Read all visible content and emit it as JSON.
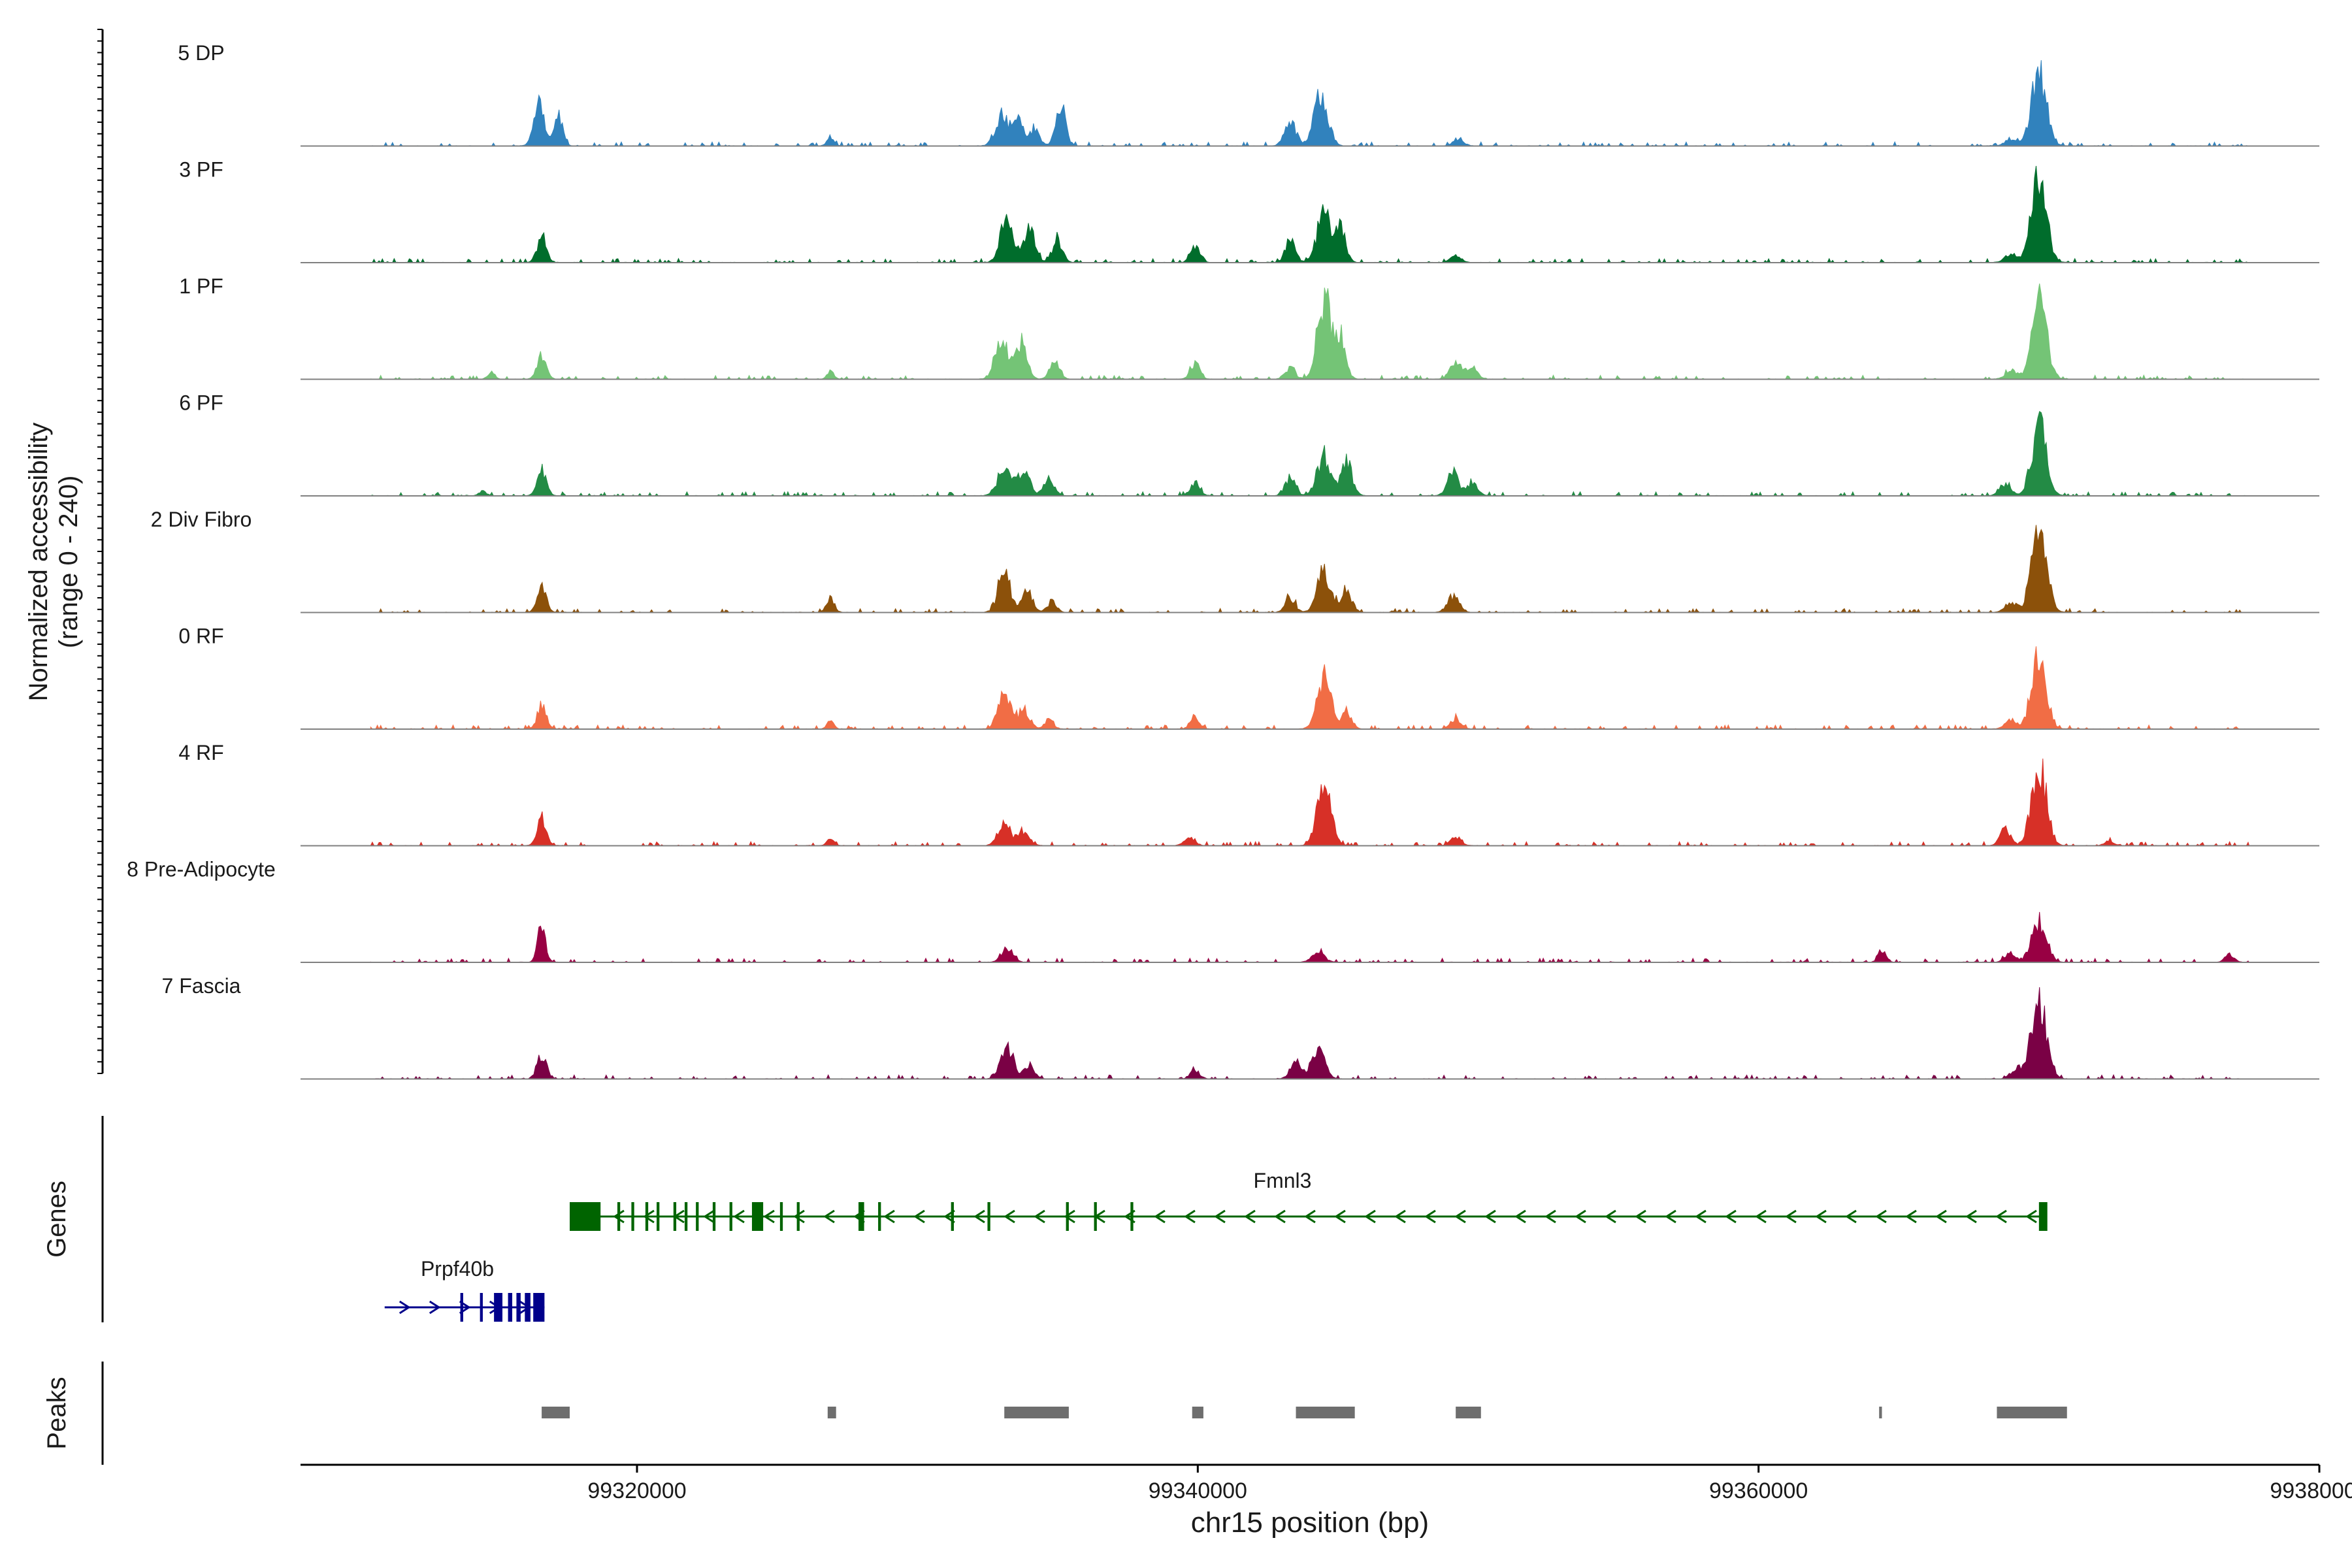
{
  "chart_data": {
    "type": "area",
    "title": "",
    "xlabel": "chr15 position (bp)",
    "ylabel_line1": "Normalized accessibility",
    "ylabel_line2": "(range 0 - 240)",
    "xlim": [
      99308000,
      99380000
    ],
    "ylim": [
      0,
      240
    ],
    "x_ticks": [
      99320000,
      99340000,
      99360000,
      99380000
    ],
    "x_tick_labels": [
      "99320000",
      "99340000",
      "99360000",
      "99380000"
    ],
    "background_noise_fraction": 0.03,
    "tracks": [
      {
        "name": "5 DP",
        "color": "#3182bd",
        "peaks": [
          [
            99316500,
            0.45,
            180
          ],
          [
            99317200,
            0.32,
            150
          ],
          [
            99326900,
            0.1,
            120
          ],
          [
            99333000,
            0.35,
            220
          ],
          [
            99333600,
            0.3,
            200
          ],
          [
            99334200,
            0.18,
            160
          ],
          [
            99335100,
            0.45,
            180
          ],
          [
            99343300,
            0.28,
            200
          ],
          [
            99344400,
            0.6,
            240
          ],
          [
            99349300,
            0.08,
            180
          ],
          [
            99370000,
            0.85,
            260
          ],
          [
            99369000,
            0.08,
            200
          ]
        ]
      },
      {
        "name": "3 PF",
        "color": "#006d2c",
        "peaks": [
          [
            99316600,
            0.28,
            160
          ],
          [
            99333200,
            0.55,
            220
          ],
          [
            99334000,
            0.35,
            200
          ],
          [
            99335000,
            0.25,
            180
          ],
          [
            99339900,
            0.18,
            160
          ],
          [
            99343300,
            0.25,
            180
          ],
          [
            99344500,
            0.55,
            240
          ],
          [
            99345100,
            0.35,
            180
          ],
          [
            99349200,
            0.08,
            180
          ],
          [
            99370000,
            0.95,
            260
          ],
          [
            99369000,
            0.1,
            200
          ]
        ]
      },
      {
        "name": "1 PF",
        "color": "#74c476",
        "peaks": [
          [
            99316600,
            0.28,
            160
          ],
          [
            99314800,
            0.08,
            120
          ],
          [
            99326900,
            0.08,
            120
          ],
          [
            99333000,
            0.48,
            220
          ],
          [
            99333700,
            0.4,
            200
          ],
          [
            99334900,
            0.18,
            180
          ],
          [
            99339900,
            0.18,
            160
          ],
          [
            99343300,
            0.12,
            180
          ],
          [
            99344500,
            0.9,
            240
          ],
          [
            99345100,
            0.45,
            180
          ],
          [
            99349200,
            0.2,
            200
          ],
          [
            99349800,
            0.12,
            180
          ],
          [
            99370000,
            0.9,
            260
          ],
          [
            99369000,
            0.1,
            200
          ]
        ]
      },
      {
        "name": "6 PF",
        "color": "#238b45",
        "peaks": [
          [
            99316600,
            0.3,
            160
          ],
          [
            99314500,
            0.06,
            120
          ],
          [
            99333100,
            0.3,
            240
          ],
          [
            99333800,
            0.25,
            220
          ],
          [
            99334700,
            0.18,
            180
          ],
          [
            99339900,
            0.12,
            180
          ],
          [
            99343300,
            0.2,
            180
          ],
          [
            99344500,
            0.45,
            240
          ],
          [
            99345300,
            0.38,
            200
          ],
          [
            99349100,
            0.25,
            200
          ],
          [
            99349800,
            0.15,
            180
          ],
          [
            99370000,
            0.78,
            260
          ],
          [
            99368800,
            0.12,
            200
          ]
        ]
      },
      {
        "name": "2 Div Fibro",
        "color": "#8c510a",
        "peaks": [
          [
            99316600,
            0.28,
            160
          ],
          [
            99326900,
            0.15,
            140
          ],
          [
            99333100,
            0.42,
            220
          ],
          [
            99333900,
            0.25,
            200
          ],
          [
            99334800,
            0.12,
            160
          ],
          [
            99343300,
            0.15,
            180
          ],
          [
            99344500,
            0.45,
            240
          ],
          [
            99345300,
            0.25,
            180
          ],
          [
            99349100,
            0.18,
            200
          ],
          [
            99370000,
            1.0,
            260
          ],
          [
            99369000,
            0.12,
            200
          ]
        ]
      },
      {
        "name": "0 RF",
        "color": "#f16d45",
        "peaks": [
          [
            99316600,
            0.25,
            160
          ],
          [
            99326900,
            0.08,
            120
          ],
          [
            99333100,
            0.38,
            220
          ],
          [
            99333800,
            0.22,
            200
          ],
          [
            99334700,
            0.1,
            160
          ],
          [
            99339900,
            0.15,
            160
          ],
          [
            99344500,
            0.6,
            240
          ],
          [
            99345300,
            0.2,
            180
          ],
          [
            99349200,
            0.12,
            180
          ],
          [
            99370000,
            0.85,
            260
          ],
          [
            99369000,
            0.1,
            200
          ]
        ]
      },
      {
        "name": "4 RF",
        "color": "#d73027",
        "peaks": [
          [
            99316600,
            0.32,
            160
          ],
          [
            99326900,
            0.08,
            120
          ],
          [
            99333100,
            0.25,
            220
          ],
          [
            99333800,
            0.15,
            200
          ],
          [
            99339700,
            0.1,
            180
          ],
          [
            99344500,
            0.72,
            240
          ],
          [
            99349200,
            0.1,
            180
          ],
          [
            99368800,
            0.18,
            180
          ],
          [
            99370000,
            0.92,
            260
          ],
          [
            99372500,
            0.06,
            150
          ]
        ]
      },
      {
        "name": "8 Pre-Adipocyte",
        "color": "#980043",
        "peaks": [
          [
            99316600,
            0.42,
            140
          ],
          [
            99333200,
            0.15,
            200
          ],
          [
            99344300,
            0.1,
            220
          ],
          [
            99364400,
            0.12,
            140
          ],
          [
            99370000,
            0.45,
            260
          ],
          [
            99369000,
            0.1,
            200
          ],
          [
            99376800,
            0.08,
            160
          ]
        ]
      },
      {
        "name": "7 Fascia",
        "color": "#7a0145",
        "peaks": [
          [
            99316600,
            0.28,
            160
          ],
          [
            99333200,
            0.35,
            220
          ],
          [
            99334000,
            0.15,
            180
          ],
          [
            99339900,
            0.1,
            160
          ],
          [
            99343500,
            0.18,
            200
          ],
          [
            99344300,
            0.38,
            220
          ],
          [
            99370000,
            0.92,
            260
          ],
          [
            99369200,
            0.12,
            200
          ]
        ]
      }
    ],
    "genes": [
      {
        "name": "Fmnl3",
        "color": "#006400",
        "strand": "-",
        "start": 99317600,
        "end": 99370200,
        "exons": [
          [
            99317600,
            99318700
          ],
          [
            99319300,
            99319400
          ],
          [
            99319800,
            99319900
          ],
          [
            99320300,
            99320400
          ],
          [
            99320700,
            99320800
          ],
          [
            99321300,
            99321400
          ],
          [
            99321700,
            99321800
          ],
          [
            99322100,
            99322200
          ],
          [
            99322700,
            99322800
          ],
          [
            99323300,
            99323400
          ],
          [
            99324100,
            99324500
          ],
          [
            99325100,
            99325200
          ],
          [
            99325700,
            99325800
          ],
          [
            99327900,
            99328100
          ],
          [
            99328600,
            99328700
          ],
          [
            99331200,
            99331300
          ],
          [
            99332500,
            99332600
          ],
          [
            99335300,
            99335400
          ],
          [
            99336300,
            99336400
          ],
          [
            99337600,
            99337700
          ],
          [
            99370000,
            99370300
          ]
        ]
      },
      {
        "name": "Prpf40b",
        "color": "#00008b",
        "strand": "+",
        "start": 99311000,
        "end": 99316700,
        "exons": [
          [
            99313700,
            99313800
          ],
          [
            99314400,
            99314500
          ],
          [
            99314900,
            99315200
          ],
          [
            99315400,
            99315550
          ],
          [
            99315700,
            99315850
          ],
          [
            99316000,
            99316200
          ],
          [
            99316300,
            99316700
          ]
        ]
      }
    ],
    "peaks": [
      [
        99316600,
        99317600
      ],
      [
        99326800,
        99327100
      ],
      [
        99333100,
        99335400
      ],
      [
        99339800,
        99340200
      ],
      [
        99343500,
        99345600
      ],
      [
        99349200,
        99350100
      ],
      [
        99364300,
        99364400
      ],
      [
        99368500,
        99371000
      ]
    ],
    "gene_track_label": "Genes",
    "peak_track_label": "Peaks"
  }
}
